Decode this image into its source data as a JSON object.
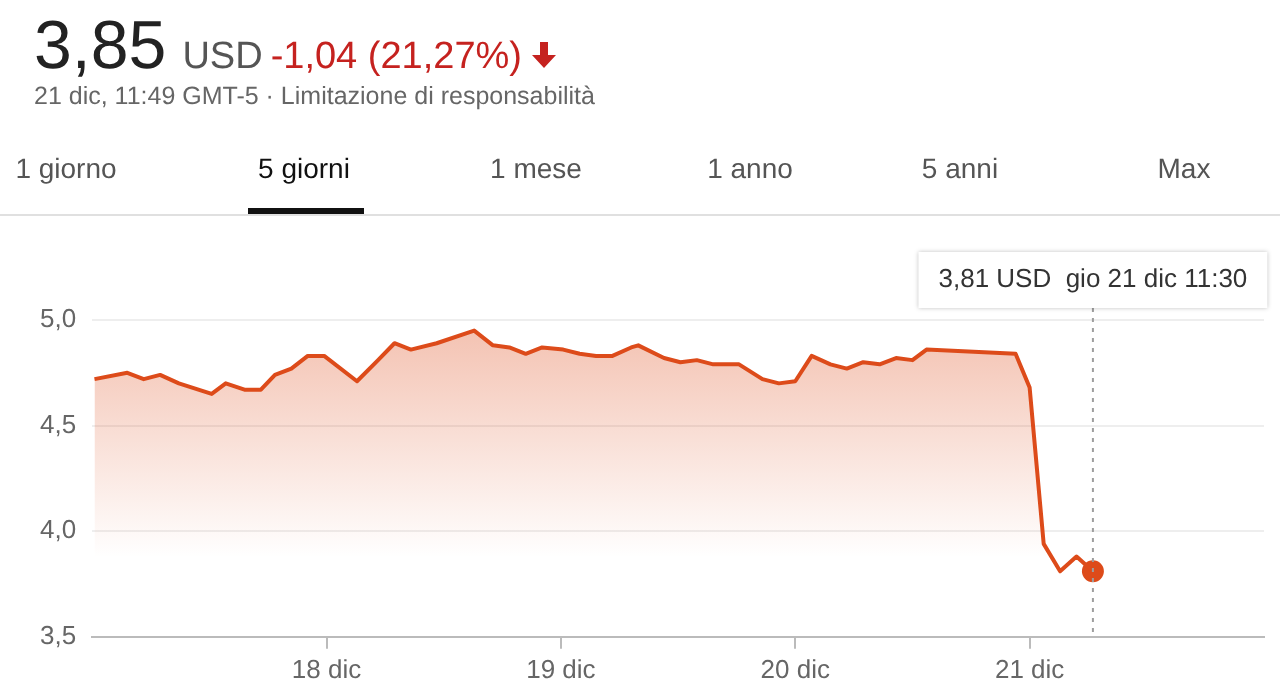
{
  "chart_data": {
    "type": "area",
    "title": "3,85",
    "subtitle": "21 dic, 11:49 GMT-5 · Limitazione di responsabilità",
    "annotations": [
      "USD",
      "-1,04 (21,27%)",
      "1 giorno",
      "5 giorni",
      "1 mese",
      "1 anno",
      "5 anni",
      "Max",
      "3,81 USD  gio 21 dic 11:30"
    ],
    "series": [
      {
        "color": "#dd4b1a",
        "x": [
          17.01,
          17.15,
          17.22,
          17.29,
          17.37,
          17.51,
          17.57,
          17.65,
          17.72,
          17.78,
          17.85,
          17.92,
          17.99,
          18.13,
          18.22,
          18.29,
          18.36,
          18.47,
          18.63,
          18.71,
          18.78,
          18.85,
          18.92,
          19.01,
          19.08,
          19.15,
          19.22,
          19.3,
          19.33,
          19.44,
          19.51,
          19.58,
          19.65,
          19.76,
          19.86,
          19.93,
          20.0,
          20.07,
          20.15,
          20.22,
          20.29,
          20.36,
          20.43,
          20.5,
          20.56,
          20.94,
          21.0,
          21.06,
          21.13,
          21.2,
          21.27
        ],
        "values": [
          4.72,
          4.75,
          4.72,
          4.74,
          4.7,
          4.65,
          4.7,
          4.67,
          4.67,
          4.74,
          4.77,
          4.83,
          4.83,
          4.71,
          4.81,
          4.89,
          4.86,
          4.89,
          4.95,
          4.88,
          4.87,
          4.84,
          4.87,
          4.86,
          4.84,
          4.83,
          4.83,
          4.87,
          4.88,
          4.82,
          4.8,
          4.81,
          4.79,
          4.79,
          4.72,
          4.7,
          4.71,
          4.83,
          4.79,
          4.77,
          4.8,
          4.79,
          4.82,
          4.81,
          4.86,
          4.84,
          4.68,
          3.94,
          3.81,
          3.88,
          3.81
        ]
      },
      {
        "type": "scatter",
        "color": "#dd4b1a",
        "x": [
          21.27
        ],
        "values": [
          3.81
        ]
      }
    ],
    "xlim": [
      17,
      22
    ],
    "xticks": [
      {
        "value": 18,
        "label": "18 dic"
      },
      {
        "value": 19,
        "label": "19 dic"
      },
      {
        "value": 20,
        "label": "20 dic"
      },
      {
        "value": 21,
        "label": "21 dic"
      }
    ],
    "ylim": [
      3.5,
      5.0
    ],
    "yticks": [
      {
        "value": 3.5,
        "label": "3,5"
      },
      {
        "value": 4,
        "label": "4,0"
      },
      {
        "value": 4.5,
        "label": "4,5"
      },
      {
        "value": 5,
        "label": "5,0"
      }
    ],
    "grid": "y",
    "legend": false,
    "line_style": "solid",
    "ref_lines": [
      {
        "axis": "x",
        "value": 21.27,
        "color": "#9e9e9e",
        "line_style": "dotted"
      }
    ]
  }
}
